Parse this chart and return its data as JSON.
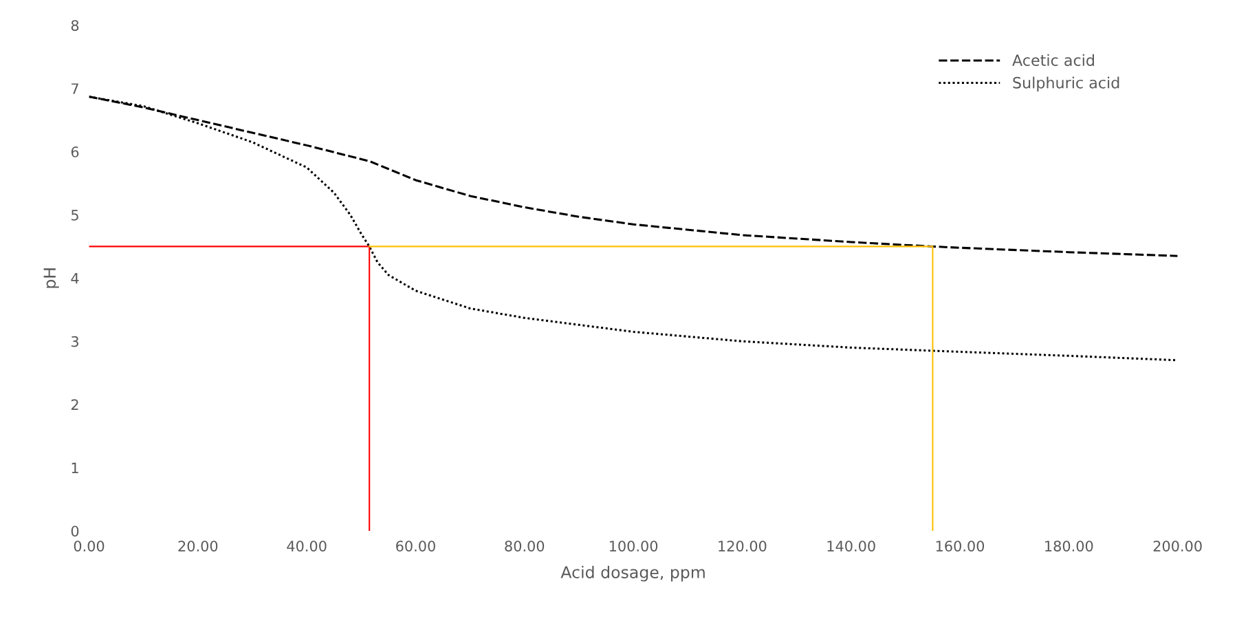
{
  "chart_data": {
    "type": "line",
    "xlabel": "Acid dosage, ppm",
    "ylabel": "pH",
    "xlim": [
      0,
      200
    ],
    "ylim": [
      0,
      8
    ],
    "xticks": [
      {
        "value": 0,
        "label": "0.00"
      },
      {
        "value": 20,
        "label": "20.00"
      },
      {
        "value": 40,
        "label": "40.00"
      },
      {
        "value": 60,
        "label": "60.00"
      },
      {
        "value": 80,
        "label": "80.00"
      },
      {
        "value": 100,
        "label": "100.00"
      },
      {
        "value": 120,
        "label": "120.00"
      },
      {
        "value": 140,
        "label": "140.00"
      },
      {
        "value": 160,
        "label": "160.00"
      },
      {
        "value": 180,
        "label": "180.00"
      },
      {
        "value": 200,
        "label": "200.00"
      }
    ],
    "yticks": [
      0,
      1,
      2,
      3,
      4,
      5,
      6,
      7,
      8
    ],
    "grid": false,
    "legend": "top right",
    "series": [
      {
        "name": "Acetic acid",
        "color": "#000000",
        "line_style": "dashed",
        "x": [
          0,
          10,
          20,
          30,
          40,
          51.5,
          60,
          70,
          80,
          90,
          100,
          120,
          140,
          155,
          160,
          180,
          200
        ],
        "values": [
          6.87,
          6.7,
          6.5,
          6.3,
          6.1,
          5.85,
          5.55,
          5.3,
          5.12,
          4.97,
          4.85,
          4.68,
          4.57,
          4.5,
          4.48,
          4.41,
          4.35
        ]
      },
      {
        "name": "Sulphuric acid",
        "color": "#000000",
        "line_style": "dotted",
        "x": [
          0,
          10,
          20,
          30,
          40,
          45,
          48,
          50,
          51.5,
          53,
          55,
          60,
          70,
          80,
          100,
          120,
          140,
          155,
          180,
          200
        ],
        "values": [
          6.87,
          6.72,
          6.45,
          6.15,
          5.75,
          5.35,
          5.0,
          4.7,
          4.5,
          4.25,
          4.05,
          3.8,
          3.52,
          3.37,
          3.15,
          3.0,
          2.9,
          2.85,
          2.77,
          2.7
        ]
      },
      {
        "color": "#ff0000",
        "line_style": "solid",
        "x": [
          0,
          51.5,
          51.5
        ],
        "values": [
          4.5,
          4.5,
          0
        ]
      },
      {
        "color": "#ffc000",
        "line_style": "solid",
        "x": [
          51.5,
          155,
          155
        ],
        "values": [
          4.5,
          4.5,
          0
        ]
      }
    ]
  }
}
